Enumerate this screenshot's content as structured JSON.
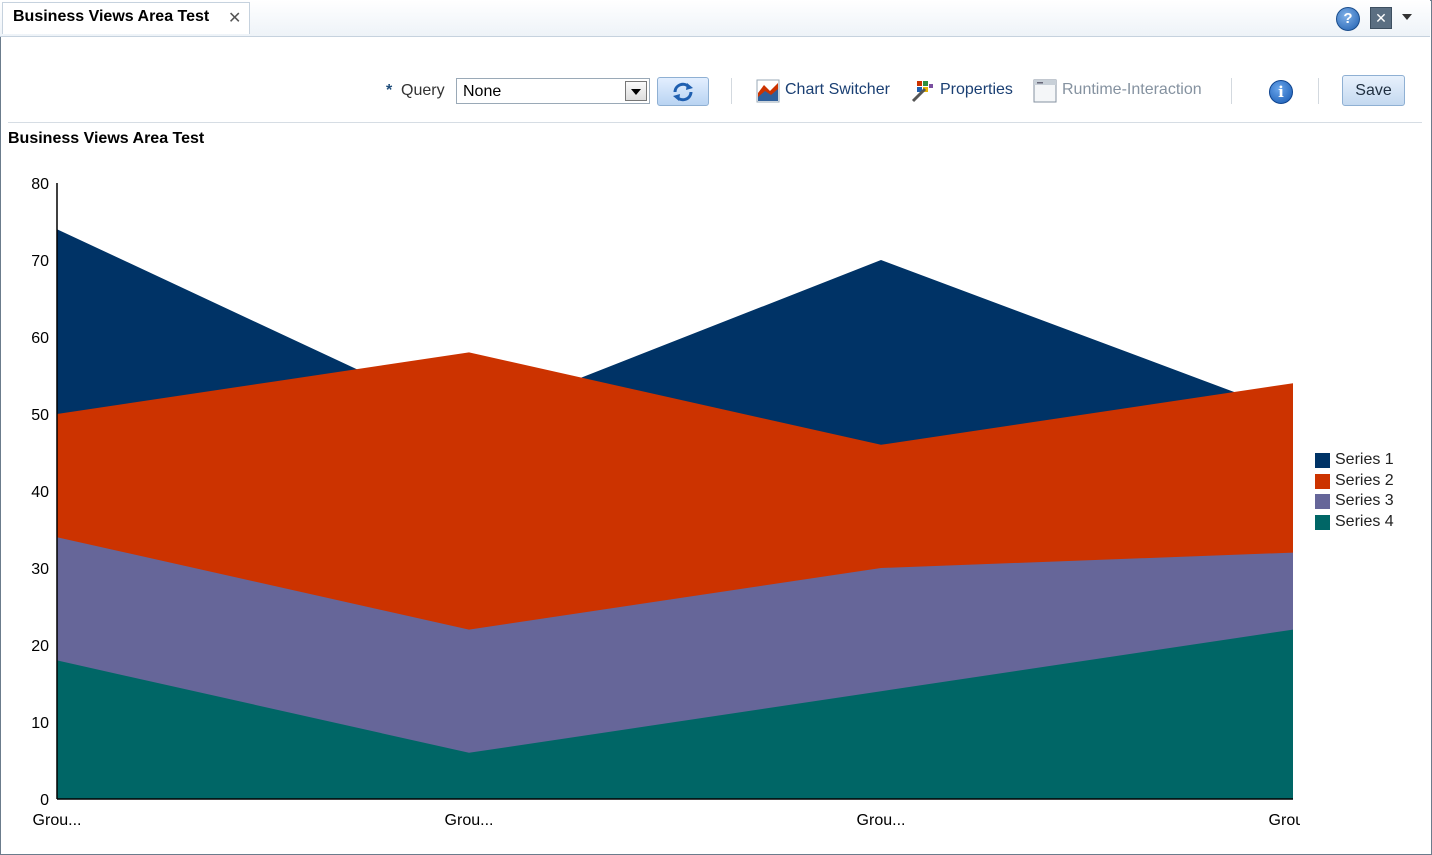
{
  "tab": {
    "title": "Business Views Area Test"
  },
  "window": {
    "help_icon": "help-icon",
    "close_icon": "close-box-icon",
    "menu_icon": "menu-caret-icon"
  },
  "toolbar": {
    "required_marker": "*",
    "query_label": "Query",
    "query_value": "None",
    "chart_switcher_label": "Chart Switcher",
    "properties_label": "Properties",
    "runtime_label": "Runtime-Interaction",
    "save_label": "Save"
  },
  "colors": {
    "series1": "#003366",
    "series2": "#cc3300",
    "series3": "#666699",
    "series4": "#006666"
  },
  "chart_data": {
    "type": "area",
    "stacked": false,
    "title": "Business Views Area Test",
    "categories": [
      "Grou...",
      "Grou...",
      "Grou...",
      "Grou..."
    ],
    "y_ticks": [
      "0",
      "10",
      "20",
      "30",
      "40",
      "50",
      "60",
      "70",
      "80"
    ],
    "ylim": [
      0,
      80
    ],
    "legend_position": "right",
    "grid": false,
    "series": [
      {
        "name": "Series 1",
        "values": [
          74,
          49,
          70,
          50
        ],
        "color": "#003366"
      },
      {
        "name": "Series 2",
        "values": [
          50,
          58,
          46,
          54
        ],
        "color": "#cc3300"
      },
      {
        "name": "Series 3",
        "values": [
          34,
          22,
          30,
          32
        ],
        "color": "#666699"
      },
      {
        "name": "Series 4",
        "values": [
          18,
          6,
          14,
          22
        ],
        "color": "#006666"
      }
    ]
  }
}
